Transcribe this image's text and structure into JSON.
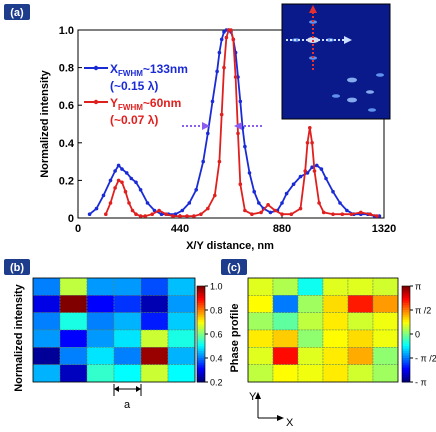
{
  "panels": [
    {
      "badge": "(a)"
    },
    {
      "badge": "(b)"
    },
    {
      "badge": "(c)"
    }
  ],
  "colors": {
    "x_profile": "#1a2bd6",
    "y_profile": "#e0201f",
    "badge_bg": "#1d3c8c",
    "inset_bg": "#0a1a8a",
    "inset_grid": "#7f8fb8",
    "markers": "#8a5cf0"
  },
  "chart_data": [
    {
      "type": "line",
      "panel": "(a)",
      "xlabel": "X/Y distance, nm",
      "ylabel": "Normalized intensity",
      "xlim": [
        0,
        1320
      ],
      "ylim": [
        0,
        1.0
      ],
      "x_ticks": [
        "0",
        "440",
        "880",
        "1320"
      ],
      "y_ticks": [
        "0",
        "0.2",
        "0.4",
        "0.6",
        "0.8",
        "1.0"
      ],
      "grid": false,
      "annotations": [
        {
          "main": "X",
          "sub": "FWHM",
          "rest": "~133nm",
          "note": "(~0.15 λ)",
          "series": "X"
        },
        {
          "main": "Y",
          "sub": "FWHM",
          "rest": "~60nm",
          "note": "(~0.07 λ)",
          "series": "Y"
        }
      ],
      "series": [
        {
          "key": "X",
          "x": [
            50,
            80,
            110,
            140,
            160,
            175,
            190,
            210,
            230,
            250,
            270,
            300,
            330,
            360,
            390,
            420,
            450,
            480,
            510,
            540,
            560,
            580,
            600,
            610,
            620,
            630,
            640,
            650,
            660,
            670,
            680,
            690,
            700,
            710,
            720,
            740,
            760,
            780,
            800,
            830,
            860,
            880,
            900,
            930,
            960,
            990,
            1010,
            1030,
            1050,
            1070,
            1100,
            1130,
            1160,
            1190,
            1220,
            1250,
            1280,
            1300
          ],
          "y": [
            0.02,
            0.05,
            0.12,
            0.2,
            0.25,
            0.28,
            0.26,
            0.24,
            0.21,
            0.19,
            0.15,
            0.08,
            0.04,
            0.02,
            0.02,
            0.02,
            0.04,
            0.08,
            0.15,
            0.3,
            0.45,
            0.62,
            0.78,
            0.88,
            0.95,
            0.99,
            1.0,
            1.0,
            0.99,
            0.95,
            0.88,
            0.75,
            0.62,
            0.48,
            0.38,
            0.24,
            0.14,
            0.08,
            0.05,
            0.03,
            0.04,
            0.08,
            0.13,
            0.18,
            0.22,
            0.24,
            0.27,
            0.28,
            0.26,
            0.21,
            0.14,
            0.08,
            0.04,
            0.02,
            0.02,
            0.02,
            0.01,
            0.01
          ]
        },
        {
          "key": "Y",
          "x": [
            120,
            140,
            160,
            175,
            190,
            205,
            220,
            235,
            250,
            270,
            290,
            320,
            350,
            380,
            410,
            440,
            470,
            500,
            530,
            560,
            590,
            610,
            620,
            630,
            640,
            650,
            660,
            670,
            680,
            690,
            700,
            720,
            750,
            790,
            820,
            850,
            880,
            920,
            960,
            980,
            990,
            1000,
            1010,
            1020,
            1040,
            1060,
            1100,
            1140,
            1180,
            1220,
            1260,
            1290
          ],
          "y": [
            0.02,
            0.08,
            0.16,
            0.2,
            0.19,
            0.14,
            0.08,
            0.04,
            0.02,
            0.01,
            0.01,
            0.02,
            0.04,
            0.02,
            0.01,
            0.01,
            0.01,
            0.01,
            0.02,
            0.05,
            0.12,
            0.3,
            0.55,
            0.8,
            0.96,
            1.0,
            1.0,
            0.95,
            0.75,
            0.45,
            0.18,
            0.04,
            0.02,
            0.03,
            0.07,
            0.04,
            0.02,
            0.02,
            0.05,
            0.25,
            0.4,
            0.48,
            0.4,
            0.25,
            0.08,
            0.03,
            0.02,
            0.02,
            0.02,
            0.03,
            0.02,
            0.01
          ]
        }
      ]
    },
    {
      "type": "heatmap",
      "panel": "(b)",
      "ylabel": "Normalized intensity",
      "colorbar_ticks": [
        "1.0",
        "0.8",
        "0.6",
        "0.4",
        "0.2"
      ],
      "color_range": [
        0.2,
        1.0
      ],
      "scale_label": "a",
      "values": [
        [
          0.4,
          0.65,
          0.42,
          0.42,
          0.36,
          0.45
        ],
        [
          0.28,
          1.0,
          0.3,
          0.34,
          0.24,
          0.42
        ],
        [
          0.4,
          0.52,
          0.4,
          0.44,
          0.32,
          0.46
        ],
        [
          0.42,
          0.3,
          0.42,
          0.48,
          0.66,
          0.52
        ],
        [
          0.22,
          0.4,
          0.48,
          0.4,
          0.98,
          0.44
        ],
        [
          0.44,
          0.25,
          0.54,
          0.5,
          0.66,
          0.5
        ]
      ]
    },
    {
      "type": "heatmap",
      "panel": "(c)",
      "ylabel": "Phase profile",
      "colorbar_ticks": [
        "π",
        "π /2",
        "0",
        "- π /2",
        "- π"
      ],
      "color_range": [
        -3.1416,
        3.1416
      ],
      "axis_x": "X",
      "axis_y": "Y",
      "values": [
        [
          0.6,
          0.3,
          -0.7,
          0.6,
          0.6,
          0.5
        ],
        [
          0.8,
          -1.6,
          0.2,
          1.0,
          2.2,
          1.4
        ],
        [
          0.2,
          -0.2,
          0.4,
          0.9,
          0.5,
          0.7
        ],
        [
          0.9,
          1.1,
          0.1,
          0.8,
          1.0,
          0.7
        ],
        [
          0.6,
          2.3,
          0.6,
          0.9,
          1.3,
          0.1
        ],
        [
          0.4,
          0.8,
          0.7,
          0.9,
          0.5,
          0.2
        ]
      ]
    }
  ]
}
